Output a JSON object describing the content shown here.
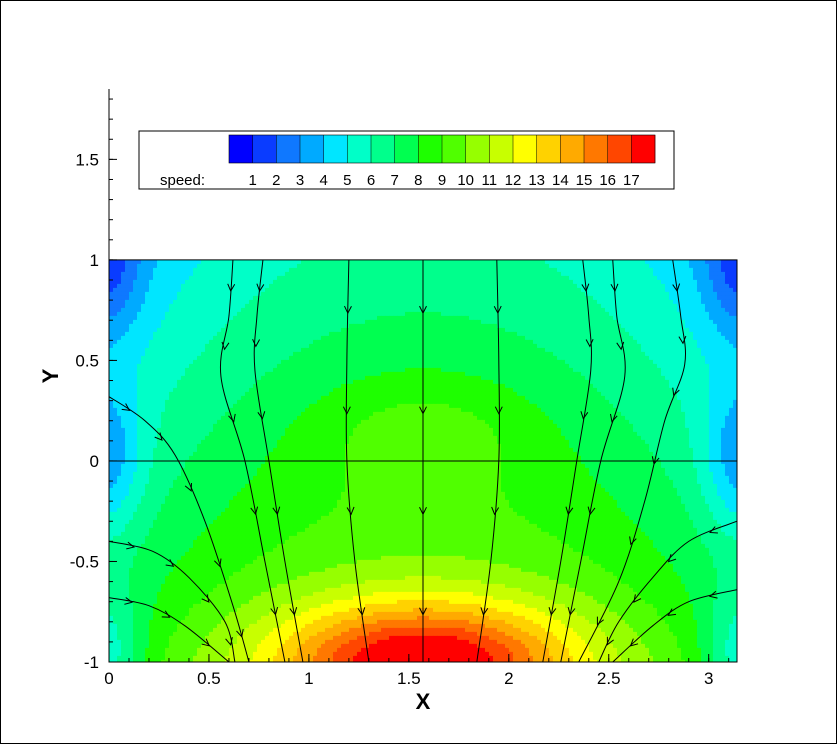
{
  "chart_data": {
    "type": "heatmap",
    "variable": "speed",
    "xlabel": "X",
    "ylabel": "Y",
    "xlim": [
      0,
      3.14159
    ],
    "ylim": [
      -1,
      1.85
    ],
    "data_region": {
      "x": [
        0,
        3.14159
      ],
      "y": [
        -1,
        1
      ]
    },
    "x_ticks": [
      "0",
      "0.5",
      "1",
      "1.5",
      "2",
      "2.5",
      "3"
    ],
    "x_tick_values": [
      0,
      0.5,
      1,
      1.5,
      2,
      2.5,
      3
    ],
    "y_ticks": [
      "-1",
      "-0.5",
      "0",
      "0.5",
      "1",
      "1.5"
    ],
    "y_tick_values": [
      -1,
      -0.5,
      0,
      0.5,
      1,
      1.5
    ],
    "legend": {
      "label": "speed:",
      "placement": "top",
      "levels": [
        "1",
        "2",
        "3",
        "4",
        "5",
        "6",
        "7",
        "8",
        "9",
        "10",
        "11",
        "12",
        "13",
        "14",
        "15",
        "16",
        "17"
      ],
      "colors": [
        "#0000ff",
        "#0a3cff",
        "#0f78ff",
        "#00aaff",
        "#00e6ff",
        "#00ffc8",
        "#00ff8c",
        "#00ff50",
        "#1eff00",
        "#50ff00",
        "#96ff00",
        "#c8ff00",
        "#ffff00",
        "#ffd200",
        "#ffaa00",
        "#ff7800",
        "#ff4600",
        "#ff0000"
      ]
    },
    "reference_lines": [
      {
        "orientation": "horizontal",
        "y": 0
      },
      {
        "orientation": "vertical",
        "x": 1.5708
      }
    ],
    "streamlines": [
      {
        "points": [
          [
            1.5708,
            1
          ],
          [
            1.5708,
            0.5
          ],
          [
            1.5708,
            0
          ],
          [
            1.5708,
            -0.5
          ],
          [
            1.5708,
            -1
          ]
        ]
      },
      {
        "points": [
          [
            1.2,
            1
          ],
          [
            1.19,
            0.5
          ],
          [
            1.19,
            0
          ],
          [
            1.23,
            -0.5
          ],
          [
            1.3,
            -1
          ]
        ]
      },
      {
        "points": [
          [
            0.77,
            1
          ],
          [
            0.74,
            0.72
          ],
          [
            0.73,
            0.45
          ],
          [
            0.8,
            0
          ],
          [
            0.88,
            -0.5
          ],
          [
            0.97,
            -1
          ]
        ]
      },
      {
        "points": [
          [
            0.62,
            1
          ],
          [
            0.6,
            0.72
          ],
          [
            0.56,
            0.42
          ],
          [
            0.68,
            0
          ],
          [
            0.78,
            -0.5
          ],
          [
            0.88,
            -1
          ]
        ]
      },
      {
        "points": [
          [
            0,
            0.32
          ],
          [
            0.18,
            0.2
          ],
          [
            0.33,
            0.03
          ],
          [
            0.48,
            -0.3
          ],
          [
            0.62,
            -0.72
          ],
          [
            0.7,
            -1
          ]
        ]
      },
      {
        "points": [
          [
            0,
            -0.4
          ],
          [
            0.22,
            -0.45
          ],
          [
            0.4,
            -0.58
          ],
          [
            0.58,
            -0.8
          ],
          [
            0.63,
            -1
          ]
        ]
      },
      {
        "points": [
          [
            0,
            -0.68
          ],
          [
            0.2,
            -0.72
          ],
          [
            0.38,
            -0.82
          ],
          [
            0.6,
            -1
          ]
        ]
      },
      {
        "points": [
          [
            1.94,
            1
          ],
          [
            1.95,
            0.5
          ],
          [
            1.95,
            0
          ],
          [
            1.91,
            -0.5
          ],
          [
            1.84,
            -1
          ]
        ]
      },
      {
        "points": [
          [
            2.37,
            1
          ],
          [
            2.4,
            0.72
          ],
          [
            2.41,
            0.45
          ],
          [
            2.34,
            0
          ],
          [
            2.26,
            -0.5
          ],
          [
            2.17,
            -1
          ]
        ]
      },
      {
        "points": [
          [
            2.52,
            1
          ],
          [
            2.54,
            0.72
          ],
          [
            2.58,
            0.42
          ],
          [
            2.46,
            0
          ],
          [
            2.36,
            -0.5
          ],
          [
            2.26,
            -1
          ]
        ]
      },
      {
        "points": [
          [
            2.82,
            1
          ],
          [
            2.86,
            0.72
          ],
          [
            2.88,
            0.48
          ],
          [
            2.78,
            0.2
          ],
          [
            2.68,
            -0.2
          ],
          [
            2.55,
            -0.6
          ],
          [
            2.35,
            -1
          ]
        ]
      },
      {
        "points": [
          [
            3.14159,
            -0.3
          ],
          [
            2.9,
            -0.4
          ],
          [
            2.72,
            -0.58
          ],
          [
            2.55,
            -0.8
          ],
          [
            2.45,
            -1
          ]
        ]
      },
      {
        "points": [
          [
            3.14159,
            -0.64
          ],
          [
            2.9,
            -0.7
          ],
          [
            2.72,
            -0.82
          ],
          [
            2.52,
            -1
          ]
        ]
      }
    ]
  }
}
